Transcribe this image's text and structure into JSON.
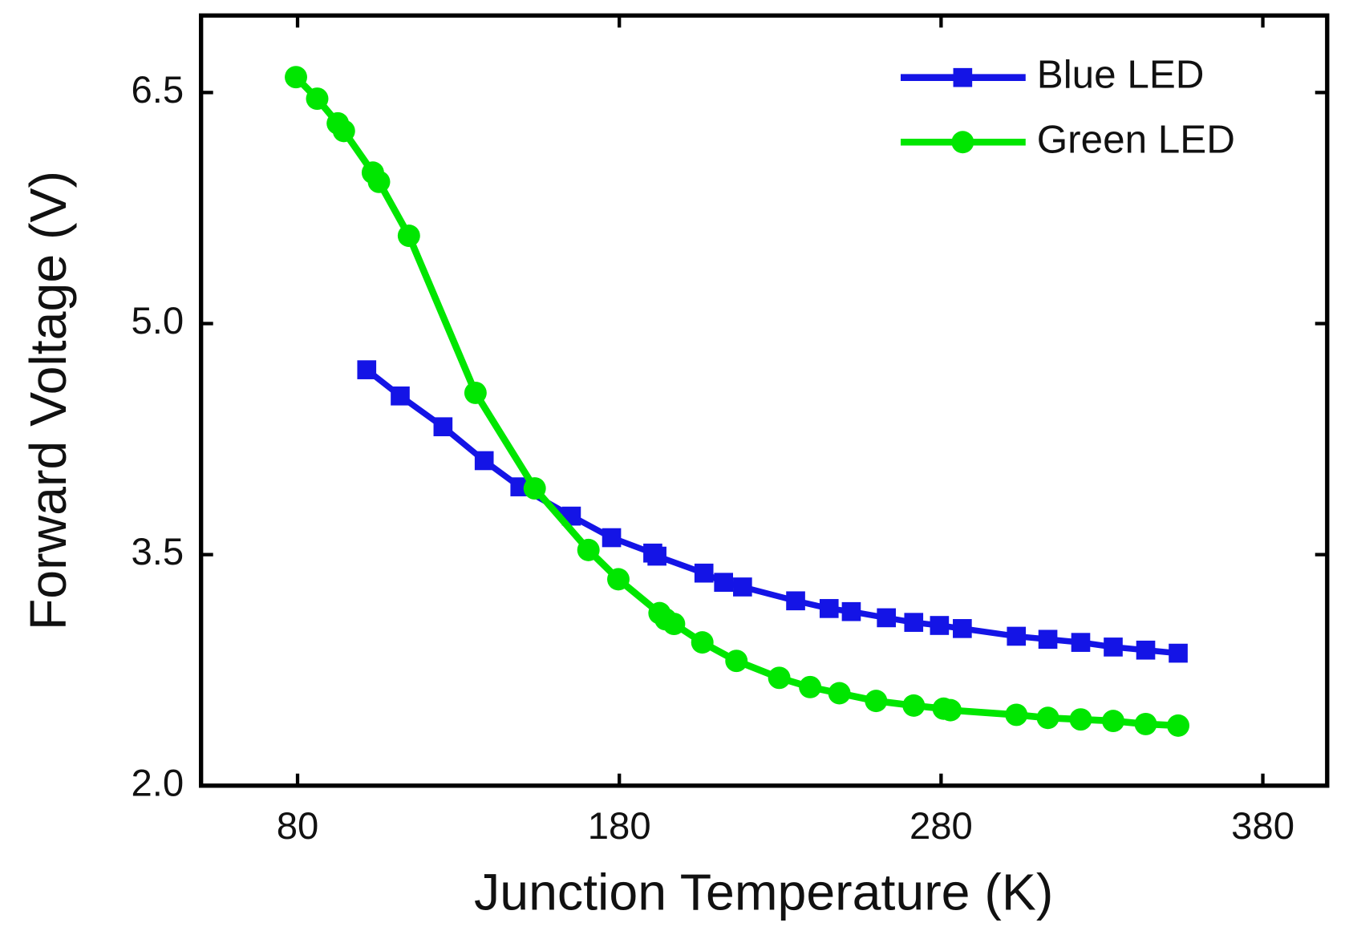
{
  "chart_data": {
    "type": "line",
    "x_label": "Junction Temperature (K)",
    "y_label": "Forward Voltage (V)",
    "xlim": [
      50,
      400
    ],
    "xticks": [
      80,
      180,
      280,
      380
    ],
    "ylim": [
      2.0,
      7.0
    ],
    "yticks": [
      {
        "value": 2.0,
        "label": "2.0"
      },
      {
        "value": 3.5,
        "label": "3.5"
      },
      {
        "value": 5.0,
        "label": "5.0"
      },
      {
        "value": 6.5,
        "label": "6.5"
      }
    ],
    "legend": "upper-right",
    "series": [
      {
        "name": "Blue LED",
        "color": "#1414e6",
        "marker": "square",
        "x": [
          101.5,
          111.9,
          125.2,
          138.0,
          149.1,
          165.1,
          177.6,
          190.4,
          191.7,
          206.3,
          212.4,
          218.3,
          234.8,
          245.2,
          252.1,
          263.0,
          271.5,
          279.5,
          286.6,
          303.4,
          313.2,
          323.4,
          333.5,
          343.6,
          353.7
        ],
        "values": [
          4.7,
          4.53,
          4.33,
          4.11,
          3.94,
          3.75,
          3.61,
          3.51,
          3.49,
          3.38,
          3.32,
          3.29,
          3.2,
          3.15,
          3.13,
          3.09,
          3.06,
          3.04,
          3.02,
          2.97,
          2.95,
          2.93,
          2.9,
          2.88,
          2.86
        ]
      },
      {
        "name": "Green LED",
        "color": "#00e600",
        "marker": "circle",
        "x": [
          79.5,
          86.1,
          92.5,
          94.4,
          103.4,
          105.3,
          114.6,
          135.3,
          153.7,
          170.4,
          179.7,
          192.5,
          194.4,
          197.0,
          205.8,
          216.4,
          229.7,
          239.3,
          248.4,
          259.8,
          271.5,
          280.8,
          282.9,
          303.4,
          313.2,
          323.4,
          333.5,
          343.6,
          353.7
        ],
        "values": [
          6.6,
          6.46,
          6.3,
          6.25,
          5.98,
          5.92,
          5.57,
          4.55,
          3.93,
          3.53,
          3.34,
          3.12,
          3.08,
          3.05,
          2.93,
          2.81,
          2.7,
          2.64,
          2.6,
          2.55,
          2.52,
          2.5,
          2.49,
          2.46,
          2.44,
          2.43,
          2.42,
          2.4,
          2.39
        ]
      }
    ]
  }
}
